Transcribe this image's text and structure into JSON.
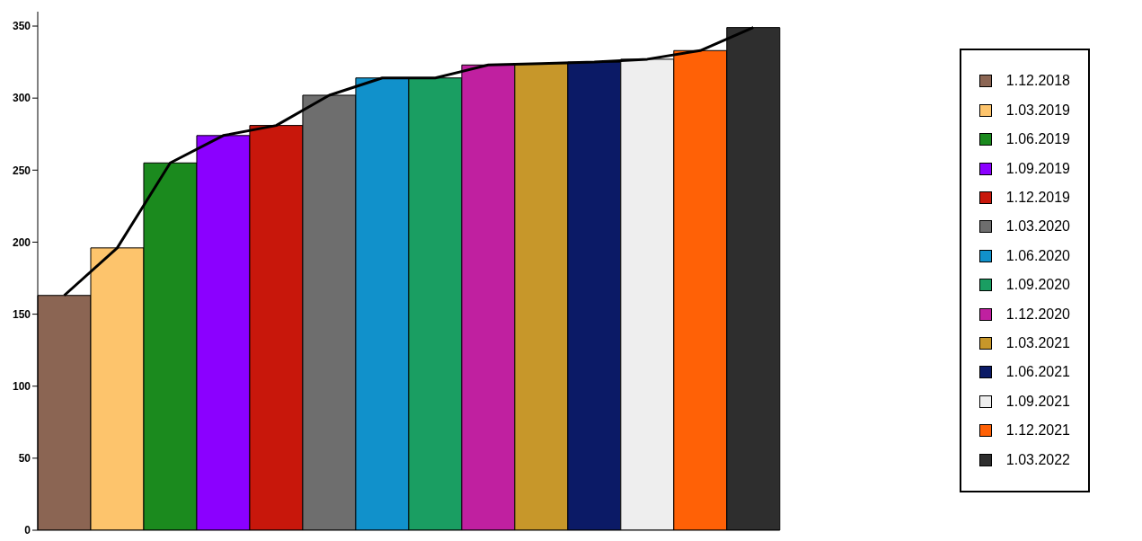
{
  "chart_data": {
    "type": "bar",
    "stacked": true,
    "categories": [
      null,
      null,
      null,
      null,
      null,
      null,
      null,
      null,
      null,
      null,
      null,
      null,
      null,
      null
    ],
    "ylim": [
      0,
      360
    ],
    "yticks": [
      0,
      50,
      100,
      150,
      200,
      250,
      300,
      350
    ],
    "legend": "right",
    "tick_labels": "y",
    "series": [
      {
        "name": "1.12.2018",
        "color": "#8b6553",
        "values": [
          163,
          null,
          null,
          null,
          null,
          null,
          null,
          null,
          null,
          null,
          null,
          null,
          null,
          null
        ]
      },
      {
        "name": "1.03.2019",
        "color": "#fdc46c",
        "values": [
          null,
          196,
          null,
          null,
          null,
          null,
          null,
          null,
          null,
          null,
          null,
          null,
          null,
          null
        ]
      },
      {
        "name": "1.06.2019",
        "color": "#1b8a1e",
        "values": [
          null,
          null,
          255,
          null,
          null,
          null,
          null,
          null,
          null,
          null,
          null,
          null,
          null,
          null
        ]
      },
      {
        "name": "1.09.2019",
        "color": "#8b00ff",
        "values": [
          null,
          null,
          null,
          274,
          null,
          null,
          null,
          null,
          null,
          null,
          null,
          null,
          null,
          null
        ]
      },
      {
        "name": "1.12.2019",
        "color": "#c8170b",
        "values": [
          null,
          null,
          null,
          null,
          281,
          null,
          null,
          null,
          null,
          null,
          null,
          null,
          null,
          null
        ]
      },
      {
        "name": "1.03.2020",
        "color": "#6e6e6e",
        "values": [
          null,
          null,
          null,
          null,
          null,
          302,
          null,
          null,
          null,
          null,
          null,
          null,
          null,
          null
        ]
      },
      {
        "name": "1.06.2020",
        "color": "#1191cb",
        "values": [
          null,
          null,
          null,
          null,
          null,
          null,
          314,
          null,
          null,
          null,
          null,
          null,
          null,
          null
        ]
      },
      {
        "name": "1.09.2020",
        "color": "#1a9e62",
        "values": [
          null,
          null,
          null,
          null,
          null,
          null,
          null,
          314,
          null,
          null,
          null,
          null,
          null,
          null
        ]
      },
      {
        "name": "1.12.2020",
        "color": "#c020a0",
        "values": [
          null,
          null,
          null,
          null,
          null,
          null,
          null,
          null,
          323,
          null,
          null,
          null,
          null,
          null
        ]
      },
      {
        "name": "1.03.2021",
        "color": "#c7972a",
        "values": [
          null,
          null,
          null,
          null,
          null,
          null,
          null,
          null,
          null,
          324,
          null,
          null,
          null,
          null
        ]
      },
      {
        "name": "1.06.2021",
        "color": "#0b1a66",
        "values": [
          null,
          null,
          null,
          null,
          null,
          null,
          null,
          null,
          null,
          null,
          325,
          null,
          null,
          null
        ]
      },
      {
        "name": "1.09.2021",
        "color": "#eeeeee",
        "values": [
          null,
          null,
          null,
          null,
          null,
          null,
          null,
          null,
          null,
          null,
          null,
          327,
          null,
          null
        ]
      },
      {
        "name": "1.12.2021",
        "color": "#ff6106",
        "values": [
          null,
          null,
          null,
          null,
          null,
          null,
          null,
          null,
          null,
          null,
          null,
          null,
          333,
          null
        ]
      },
      {
        "name": "1.03.2022",
        "color": "#2e2e2e",
        "values": [
          null,
          null,
          null,
          null,
          null,
          null,
          null,
          null,
          null,
          null,
          null,
          null,
          null,
          349
        ]
      },
      {
        "type": "line",
        "color": "#000000",
        "values": [
          163,
          196,
          255,
          274,
          281,
          302,
          314,
          314,
          323,
          324,
          325,
          327,
          333,
          349
        ]
      }
    ]
  }
}
